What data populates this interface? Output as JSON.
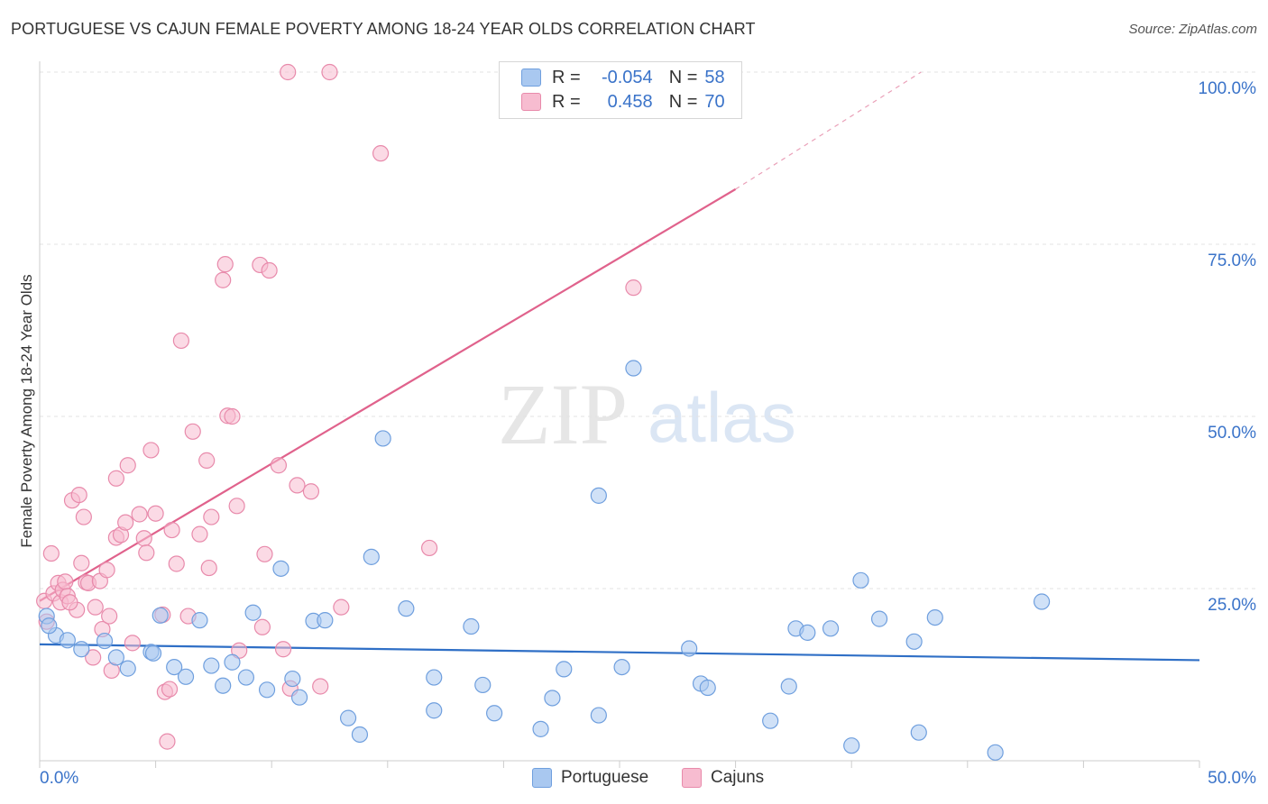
{
  "title": "PORTUGUESE VS CAJUN FEMALE POVERTY AMONG 18-24 YEAR OLDS CORRELATION CHART",
  "source": "Source: ZipAtlas.com",
  "watermark": {
    "zip": "ZIP",
    "atlas": "atlas"
  },
  "legend": {
    "rows": [
      {
        "r_label": "R =",
        "r_value": "-0.054",
        "n_label": "N =",
        "n_value": "58",
        "color": "#a9c8f0",
        "border": "#6f9fde"
      },
      {
        "r_label": "R =",
        "r_value": "0.458",
        "n_label": "N =",
        "n_value": "70",
        "color": "#f7bcd0",
        "border": "#e88aab"
      }
    ]
  },
  "bottom_legend": [
    {
      "label": "Portuguese",
      "color": "#a9c8f0",
      "border": "#6f9fde"
    },
    {
      "label": "Cajuns",
      "color": "#f7bcd0",
      "border": "#e88aab"
    }
  ],
  "axis": {
    "y_title": "Female Poverty Among 18-24 Year Olds",
    "x_min_label": "0.0%",
    "x_max_label": "50.0%",
    "y_ticks": [
      "100.0%",
      "75.0%",
      "50.0%",
      "25.0%"
    ]
  },
  "chart_data": {
    "type": "scatter",
    "title": "PORTUGUESE VS CAJUN FEMALE POVERTY AMONG 18-24 YEAR OLDS CORRELATION CHART",
    "xlabel": "",
    "ylabel": "Female Poverty Among 18-24 Year Olds",
    "xlim": [
      0,
      50
    ],
    "ylim": [
      0,
      100
    ],
    "y_tick_values": [
      25,
      50,
      75,
      100
    ],
    "grid": "horizontal dashed",
    "legend_position": "top-center",
    "series": [
      {
        "name": "Portuguese",
        "color": "#6f9fde",
        "fill": "#a9c8f0",
        "trend": {
          "x": [
            0,
            50
          ],
          "y": [
            16.9,
            14.6
          ],
          "color": "#2f6fc6"
        },
        "points": [
          [
            0.3,
            21.0
          ],
          [
            0.7,
            18.2
          ],
          [
            1.2,
            17.5
          ],
          [
            1.8,
            16.2
          ],
          [
            2.8,
            17.4
          ],
          [
            3.3,
            15.0
          ],
          [
            3.8,
            13.4
          ],
          [
            4.8,
            15.8
          ],
          [
            4.9,
            15.6
          ],
          [
            5.2,
            21.1
          ],
          [
            5.8,
            13.6
          ],
          [
            6.3,
            12.2
          ],
          [
            6.9,
            20.4
          ],
          [
            7.4,
            13.8
          ],
          [
            7.9,
            10.9
          ],
          [
            8.3,
            14.3
          ],
          [
            8.9,
            12.1
          ],
          [
            9.2,
            21.5
          ],
          [
            9.8,
            10.3
          ],
          [
            10.4,
            27.9
          ],
          [
            10.9,
            11.9
          ],
          [
            11.2,
            9.2
          ],
          [
            11.8,
            20.3
          ],
          [
            12.3,
            20.4
          ],
          [
            13.3,
            6.2
          ],
          [
            13.8,
            3.8
          ],
          [
            14.3,
            29.6
          ],
          [
            14.8,
            46.8
          ],
          [
            15.8,
            22.1
          ],
          [
            17.0,
            12.1
          ],
          [
            17.0,
            7.3
          ],
          [
            18.6,
            19.5
          ],
          [
            19.1,
            11.0
          ],
          [
            19.6,
            6.9
          ],
          [
            21.6,
            4.6
          ],
          [
            22.1,
            9.1
          ],
          [
            22.6,
            13.3
          ],
          [
            24.1,
            38.5
          ],
          [
            24.1,
            6.6
          ],
          [
            25.1,
            13.6
          ],
          [
            25.6,
            57.0
          ],
          [
            28.0,
            16.3
          ],
          [
            28.5,
            11.2
          ],
          [
            28.8,
            10.6
          ],
          [
            31.5,
            5.8
          ],
          [
            32.3,
            10.8
          ],
          [
            32.6,
            19.2
          ],
          [
            33.1,
            18.6
          ],
          [
            34.1,
            19.2
          ],
          [
            35.0,
            2.2
          ],
          [
            35.4,
            26.2
          ],
          [
            36.2,
            20.6
          ],
          [
            37.7,
            17.3
          ],
          [
            37.9,
            4.1
          ],
          [
            38.6,
            20.8
          ],
          [
            41.2,
            1.2
          ],
          [
            43.2,
            23.1
          ],
          [
            0.4,
            19.6
          ]
        ]
      },
      {
        "name": "Cajuns",
        "color": "#e88aab",
        "fill": "#f7bcd0",
        "trend": {
          "x": [
            0,
            30
          ],
          "y": [
            23.2,
            83.0
          ],
          "color": "#e0628c",
          "dashed_extension_to": [
            38,
            100
          ]
        },
        "points": [
          [
            0.2,
            23.2
          ],
          [
            0.3,
            20.2
          ],
          [
            0.5,
            30.1
          ],
          [
            0.6,
            24.3
          ],
          [
            0.8,
            25.8
          ],
          [
            0.9,
            23.0
          ],
          [
            1.0,
            24.8
          ],
          [
            1.1,
            26.0
          ],
          [
            1.2,
            23.9
          ],
          [
            1.4,
            37.8
          ],
          [
            1.6,
            21.9
          ],
          [
            1.7,
            38.6
          ],
          [
            1.8,
            28.7
          ],
          [
            1.9,
            35.4
          ],
          [
            2.0,
            25.9
          ],
          [
            2.1,
            25.8
          ],
          [
            2.3,
            15.0
          ],
          [
            2.4,
            22.3
          ],
          [
            2.6,
            26.1
          ],
          [
            2.7,
            19.1
          ],
          [
            2.9,
            27.7
          ],
          [
            3.0,
            21.0
          ],
          [
            3.1,
            13.1
          ],
          [
            3.3,
            32.4
          ],
          [
            3.3,
            41.0
          ],
          [
            3.5,
            32.8
          ],
          [
            3.7,
            34.6
          ],
          [
            3.8,
            42.9
          ],
          [
            4.0,
            17.1
          ],
          [
            4.3,
            35.8
          ],
          [
            4.5,
            32.3
          ],
          [
            4.6,
            30.2
          ],
          [
            4.8,
            45.1
          ],
          [
            5.0,
            35.9
          ],
          [
            5.3,
            21.2
          ],
          [
            5.4,
            10.0
          ],
          [
            5.5,
            2.8
          ],
          [
            5.6,
            10.4
          ],
          [
            5.7,
            33.5
          ],
          [
            5.9,
            28.6
          ],
          [
            6.1,
            61.0
          ],
          [
            6.4,
            21.0
          ],
          [
            6.6,
            47.8
          ],
          [
            6.9,
            32.9
          ],
          [
            7.2,
            43.6
          ],
          [
            7.3,
            28.0
          ],
          [
            7.4,
            35.4
          ],
          [
            7.9,
            69.8
          ],
          [
            8.0,
            72.1
          ],
          [
            8.1,
            50.1
          ],
          [
            8.3,
            50.0
          ],
          [
            8.5,
            37.0
          ],
          [
            8.6,
            16.0
          ],
          [
            9.5,
            72.0
          ],
          [
            9.6,
            19.4
          ],
          [
            9.7,
            30.0
          ],
          [
            9.9,
            71.2
          ],
          [
            10.3,
            42.9
          ],
          [
            10.5,
            16.2
          ],
          [
            10.8,
            10.5
          ],
          [
            11.1,
            40.0
          ],
          [
            11.7,
            39.1
          ],
          [
            12.1,
            10.8
          ],
          [
            13.0,
            22.3
          ],
          [
            10.7,
            100.0
          ],
          [
            12.5,
            100.0
          ],
          [
            14.7,
            88.2
          ],
          [
            16.8,
            30.9
          ],
          [
            25.6,
            68.7
          ],
          [
            1.3,
            23.0
          ]
        ]
      }
    ]
  }
}
